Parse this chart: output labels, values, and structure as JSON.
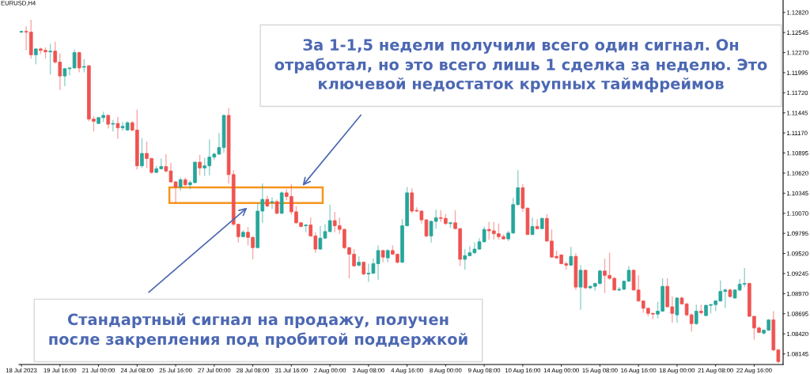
{
  "chart_data": {
    "type": "candlestick",
    "title": "EURUSD,H4",
    "categories": [
      "18 Jul 2023",
      null,
      null,
      null,
      null,
      null,
      null,
      null,
      "19 Jul 16:00",
      null,
      null,
      null,
      null,
      null,
      null,
      null,
      "21 Jul 00:00",
      null,
      null,
      null,
      null,
      null,
      null,
      null,
      "24 Jul 08:00",
      null,
      null,
      null,
      null,
      null,
      null,
      null,
      "25 Jul 16:00",
      null,
      null,
      null,
      null,
      null,
      null,
      null,
      "27 Jul 00:00",
      null,
      null,
      null,
      null,
      null,
      null,
      null,
      "28 Jul 08:00",
      null,
      null,
      null,
      null,
      null,
      null,
      null,
      "31 Jul 16:00",
      null,
      null,
      null,
      null,
      null,
      null,
      null,
      "2 Aug 00:00",
      null,
      null,
      null,
      null,
      null,
      null,
      null,
      "3 Aug 08:00",
      null,
      null,
      null,
      null,
      null,
      null,
      null,
      "4 Aug 16:00",
      null,
      null,
      null,
      null,
      null,
      null,
      null,
      "8 Aug 00:00",
      null,
      null,
      null,
      null,
      null,
      null,
      null,
      "9 Aug 08:00",
      null,
      null,
      null,
      null,
      null,
      null,
      null,
      "10 Aug 16:00",
      null,
      null,
      null,
      null,
      null,
      null,
      null,
      "14 Aug 00:00",
      null,
      null,
      null,
      null,
      null,
      null,
      null,
      "15 Aug 08:00",
      null,
      null,
      null,
      null,
      null,
      null,
      null,
      "16 Aug 16:00",
      null,
      null,
      null,
      null,
      null,
      null,
      null,
      "18 Aug 00:00",
      null,
      null,
      null,
      null,
      null,
      null,
      null,
      "21 Aug 08:00",
      null,
      null,
      null,
      null,
      null,
      null,
      null,
      "22 Aug 16:00",
      null,
      null,
      null,
      null,
      null
    ],
    "ohlc": [
      [
        1.1255,
        1.1257,
        1.1254,
        1.1256
      ],
      [
        1.1256,
        1.1263,
        1.123,
        1.1255
      ],
      [
        1.1255,
        1.1272,
        1.1219,
        1.1224
      ],
      [
        1.1224,
        1.1233,
        1.1211,
        1.1232
      ],
      [
        1.1232,
        1.1234,
        1.1225,
        1.123
      ],
      [
        1.123,
        1.1234,
        1.1219,
        1.1228
      ],
      [
        1.1228,
        1.1239,
        1.1197,
        1.1229
      ],
      [
        1.1229,
        1.1242,
        1.1212,
        1.1214
      ],
      [
        1.1214,
        1.1226,
        1.1176,
        1.1195
      ],
      [
        1.1195,
        1.1206,
        1.1181,
        1.1205
      ],
      [
        1.1205,
        1.1207,
        1.1196,
        1.1206
      ],
      [
        1.1206,
        1.1231,
        1.1205,
        1.1227
      ],
      [
        1.1227,
        1.1228,
        1.12,
        1.1206
      ],
      [
        1.1207,
        1.1218,
        1.12,
        1.1208
      ],
      [
        1.1209,
        1.121,
        1.1133,
        1.1136
      ],
      [
        1.1136,
        1.114,
        1.1119,
        1.1133
      ],
      [
        1.113,
        1.1139,
        1.1129,
        1.1138
      ],
      [
        1.1138,
        1.1146,
        1.1132,
        1.1141
      ],
      [
        1.1141,
        1.1142,
        1.1123,
        1.1129
      ],
      [
        1.1129,
        1.1135,
        1.1119,
        1.113
      ],
      [
        1.113,
        1.1139,
        1.1109,
        1.1124
      ],
      [
        1.1124,
        1.1132,
        1.112,
        1.1126
      ],
      [
        1.1121,
        1.1133,
        1.112,
        1.1131
      ],
      [
        1.1131,
        1.1133,
        1.1119,
        1.1121
      ],
      [
        1.1121,
        1.1149,
        1.1067,
        1.1072
      ],
      [
        1.1072,
        1.111,
        1.1069,
        1.1089
      ],
      [
        1.1089,
        1.1105,
        1.1069,
        1.1082
      ],
      [
        1.1082,
        1.1083,
        1.1061,
        1.1063
      ],
      [
        1.1063,
        1.1072,
        1.1062,
        1.1068
      ],
      [
        1.1068,
        1.1082,
        1.1067,
        1.1071
      ],
      [
        1.1071,
        1.1088,
        1.1063,
        1.1065
      ],
      [
        1.1065,
        1.1076,
        1.1049,
        1.105
      ],
      [
        1.105,
        1.1051,
        1.1021,
        1.1043
      ],
      [
        1.1043,
        1.1056,
        1.1038,
        1.1053
      ],
      [
        1.1053,
        1.1056,
        1.1045,
        1.1046
      ],
      [
        1.1046,
        1.1052,
        1.104,
        1.1049
      ],
      [
        1.1049,
        1.1078,
        1.1048,
        1.1077
      ],
      [
        1.1077,
        1.1087,
        1.1059,
        1.1069
      ],
      [
        1.1069,
        1.1083,
        1.1058,
        1.1072
      ],
      [
        1.1072,
        1.1108,
        1.1059,
        1.1084
      ],
      [
        1.1084,
        1.109,
        1.108,
        1.1088
      ],
      [
        1.1088,
        1.1117,
        1.1087,
        1.1097
      ],
      [
        1.1097,
        1.1142,
        1.109,
        1.1141
      ],
      [
        1.1141,
        1.1151,
        1.1048,
        1.106
      ],
      [
        1.106,
        1.1066,
        1.099,
        1.0992
      ],
      [
        1.0992,
        1.0992,
        1.0967,
        1.0975
      ],
      [
        1.0975,
        1.0984,
        1.0974,
        1.0981
      ],
      [
        1.0981,
        1.0988,
        1.0963,
        1.0974
      ],
      [
        1.0974,
        1.0976,
        1.0944,
        1.096
      ],
      [
        1.096,
        1.1021,
        1.0959,
        1.101
      ],
      [
        1.101,
        1.1048,
        1.0994,
        1.1026
      ],
      [
        1.1026,
        1.1031,
        1.1015,
        1.1017
      ],
      [
        1.1022,
        1.1029,
        1.1013,
        1.1023
      ],
      [
        1.1023,
        1.1026,
        1.1006,
        1.1007
      ],
      [
        1.1007,
        1.1037,
        1.1006,
        1.1035
      ],
      [
        1.1035,
        1.104,
        1.1025,
        1.103
      ],
      [
        1.103,
        1.1047,
        1.1005,
        1.1009
      ],
      [
        1.1009,
        1.1017,
        1.0993,
        1.0994
      ],
      [
        1.0994,
        1.0995,
        1.0988,
        1.0989
      ],
      [
        1.099,
        1.0992,
        1.0981,
        1.0991
      ],
      [
        1.0991,
        1.1001,
        1.0975,
        1.0976
      ],
      [
        1.0976,
        1.0981,
        1.0953,
        1.0958
      ],
      [
        1.0958,
        1.099,
        1.0957,
        1.0973
      ],
      [
        1.0973,
        1.0992,
        1.0972,
        1.0982
      ],
      [
        1.0982,
        1.1019,
        1.0981,
        1.0997
      ],
      [
        1.0997,
        1.1009,
        1.0981,
        1.099
      ],
      [
        1.099,
        1.1001,
        1.0979,
        1.0985
      ],
      [
        1.0985,
        1.0986,
        1.0958,
        1.096
      ],
      [
        1.096,
        1.0961,
        1.0918,
        1.0951
      ],
      [
        1.0951,
        1.0958,
        1.0934,
        1.0935
      ],
      [
        1.0936,
        1.0948,
        1.0934,
        1.094
      ],
      [
        1.094,
        1.0941,
        1.0922,
        1.0924
      ],
      [
        1.0924,
        1.0938,
        1.0913,
        1.0925
      ],
      [
        1.0925,
        1.0945,
        1.0924,
        1.0938
      ],
      [
        1.0938,
        1.0963,
        1.0916,
        1.0956
      ],
      [
        1.0956,
        1.0957,
        1.094,
        1.0947
      ],
      [
        1.0946,
        1.0958,
        1.094,
        1.0956
      ],
      [
        1.0956,
        1.0963,
        1.095,
        1.0951
      ],
      [
        1.0951,
        1.0952,
        1.0938,
        1.094
      ],
      [
        1.094,
        1.0999,
        1.0939,
        1.099
      ],
      [
        1.099,
        1.1043,
        1.0989,
        1.1035
      ],
      [
        1.1035,
        1.1041,
        1.1007,
        1.101
      ],
      [
        1.1011,
        1.1015,
        1.1009,
        1.101
      ],
      [
        1.101,
        1.1011,
        1.0993,
        1.0998
      ],
      [
        1.0998,
        1.0999,
        1.0974,
        1.0976
      ],
      [
        1.0976,
        1.0997,
        1.0967,
        1.0996
      ],
      [
        1.0996,
        1.1012,
        1.0986,
        1.1001
      ],
      [
        1.1001,
        1.1011,
        1.0995,
        1.1
      ],
      [
        1.1,
        1.1006,
        1.0991,
        1.0993
      ],
      [
        1.0993,
        1.0995,
        1.0987,
        1.0994
      ],
      [
        1.0994,
        1.1011,
        1.0985,
        1.0986
      ],
      [
        1.0986,
        1.0987,
        1.0935,
        1.0944
      ],
      [
        1.0944,
        1.0958,
        1.093,
        1.0949
      ],
      [
        1.0949,
        1.0962,
        1.0948,
        1.0953
      ],
      [
        1.0953,
        1.0967,
        1.0951,
        1.0958
      ],
      [
        1.0958,
        1.0973,
        1.0957,
        1.0968
      ],
      [
        1.0968,
        1.0989,
        1.0967,
        1.0985
      ],
      [
        1.0985,
        1.0995,
        1.0971,
        1.0983
      ],
      [
        1.0983,
        1.0995,
        1.0971,
        1.0979
      ],
      [
        1.0979,
        1.0993,
        1.0971,
        1.0975
      ],
      [
        1.0975,
        1.0978,
        1.0971,
        1.0972
      ],
      [
        1.0972,
        1.0983,
        1.0969,
        1.098
      ],
      [
        1.098,
        1.1028,
        1.0979,
        1.1019
      ],
      [
        1.1019,
        1.1066,
        1.1017,
        1.1042
      ],
      [
        1.1042,
        1.1047,
        1.1009,
        1.1014
      ],
      [
        1.1014,
        1.1015,
        1.0977,
        1.0978
      ],
      [
        1.0978,
        1.1001,
        1.0977,
        1.0989
      ],
      [
        1.0989,
        1.0999,
        1.0985,
        1.0986
      ],
      [
        1.0986,
        1.1001,
        1.0985,
        1.1
      ],
      [
        1.1,
        1.1006,
        1.0968,
        1.0969
      ],
      [
        1.0969,
        1.0985,
        1.0946,
        1.0947
      ],
      [
        1.0948,
        1.0956,
        1.0945,
        1.0946
      ],
      [
        1.095,
        1.0951,
        1.0937,
        1.0938
      ],
      [
        1.0938,
        1.0941,
        1.093,
        1.0936
      ],
      [
        1.0936,
        1.0961,
        1.0935,
        1.0948
      ],
      [
        1.0948,
        1.0952,
        1.0902,
        1.0906
      ],
      [
        1.0906,
        1.0936,
        1.0875,
        1.0929
      ],
      [
        1.0929,
        1.093,
        1.0903,
        1.0905
      ],
      [
        1.0905,
        1.0908,
        1.0903,
        1.0907
      ],
      [
        1.0907,
        1.0912,
        1.0901,
        1.0911
      ],
      [
        1.0911,
        1.093,
        1.0909,
        1.0928
      ],
      [
        1.0928,
        1.0945,
        1.0898,
        1.0922
      ],
      [
        1.0922,
        1.0953,
        1.0916,
        1.0918
      ],
      [
        1.0918,
        1.092,
        1.0901,
        1.0902
      ],
      [
        1.0902,
        1.0906,
        1.09,
        1.0903
      ],
      [
        1.0903,
        1.0915,
        1.0902,
        1.0914
      ],
      [
        1.0914,
        1.0935,
        1.0913,
        1.0929
      ],
      [
        1.0929,
        1.093,
        1.0901,
        1.0902
      ],
      [
        1.0902,
        1.0922,
        1.0886,
        1.0887
      ],
      [
        1.0887,
        1.0888,
        1.0871,
        1.0877
      ],
      [
        1.0877,
        1.0878,
        1.0866,
        1.087
      ],
      [
        1.087,
        1.0871,
        1.0862,
        1.0869
      ],
      [
        1.0869,
        1.0886,
        1.0863,
        1.0873
      ],
      [
        1.0873,
        1.0918,
        1.0872,
        1.0907
      ],
      [
        1.0907,
        1.0918,
        1.0878,
        1.0879
      ],
      [
        1.0879,
        1.0893,
        1.0857,
        1.087
      ],
      [
        1.0868,
        1.0892,
        1.0857,
        1.0891
      ],
      [
        1.0891,
        1.0893,
        1.0882,
        1.0883
      ],
      [
        1.0883,
        1.0884,
        1.0866,
        1.0868
      ],
      [
        1.0868,
        1.087,
        1.0845,
        1.0856
      ],
      [
        1.0856,
        1.0882,
        1.0854,
        1.0873
      ],
      [
        1.0873,
        1.0882,
        1.0868,
        1.0871
      ],
      [
        1.0867,
        1.0882,
        1.0866,
        1.0881
      ],
      [
        1.0881,
        1.0883,
        1.087,
        1.0882
      ],
      [
        1.0882,
        1.0888,
        1.0873,
        1.0887
      ],
      [
        1.0887,
        1.0915,
        1.0886,
        1.09
      ],
      [
        1.09,
        1.0904,
        1.0877,
        1.0902
      ],
      [
        1.0902,
        1.0904,
        1.0892,
        1.0893
      ],
      [
        1.0891,
        1.0903,
        1.089,
        1.0902
      ],
      [
        1.0902,
        1.0917,
        1.09,
        1.091
      ],
      [
        1.091,
        1.0932,
        1.0906,
        1.0911
      ],
      [
        1.0911,
        1.0912,
        1.0865,
        1.0866
      ],
      [
        1.0866,
        1.0866,
        1.0834,
        1.085
      ],
      [
        1.085,
        1.0852,
        1.0843,
        1.0844
      ],
      [
        1.0843,
        1.0848,
        1.0841,
        1.0847
      ],
      [
        1.0847,
        1.0862,
        1.0846,
        1.0861
      ],
      [
        1.0861,
        1.0873,
        1.0818,
        1.082
      ],
      [
        1.082,
        1.0821,
        1.0802,
        1.0804
      ]
    ],
    "colors": [
      "#26a69a",
      "#ef5350",
      "#ef5350",
      "#26a69a",
      "#ef5350",
      "#ef5350",
      "#26a69a",
      "#ef5350",
      "#ef5350",
      "#26a69a",
      "#26a69a",
      "#26a69a",
      "#ef5350",
      "#26a69a",
      "#ef5350",
      "#ef5350",
      "#26a69a",
      "#26a69a",
      "#ef5350",
      "#26a69a",
      "#ef5350",
      "#26a69a",
      "#26a69a",
      "#ef5350",
      "#ef5350",
      "#26a69a",
      "#ef5350",
      "#ef5350",
      "#26a69a",
      "#26a69a",
      "#ef5350",
      "#ef5350",
      "#ef5350",
      "#26a69a",
      "#ef5350",
      "#26a69a",
      "#26a69a",
      "#ef5350",
      "#26a69a",
      "#26a69a",
      "#26a69a",
      "#26a69a",
      "#26a69a",
      "#ef5350",
      "#ef5350",
      "#ef5350",
      "#26a69a",
      "#ef5350",
      "#ef5350",
      "#26a69a",
      "#26a69a",
      "#ef5350",
      "#26a69a",
      "#ef5350",
      "#26a69a",
      "#ef5350",
      "#ef5350",
      "#ef5350",
      "#ef5350",
      "#26a69a",
      "#ef5350",
      "#ef5350",
      "#26a69a",
      "#26a69a",
      "#26a69a",
      "#ef5350",
      "#ef5350",
      "#ef5350",
      "#ef5350",
      "#ef5350",
      "#26a69a",
      "#ef5350",
      "#26a69a",
      "#26a69a",
      "#26a69a",
      "#ef5350",
      "#26a69a",
      "#ef5350",
      "#ef5350",
      "#26a69a",
      "#26a69a",
      "#ef5350",
      "#ef5350",
      "#ef5350",
      "#ef5350",
      "#26a69a",
      "#26a69a",
      "#ef5350",
      "#ef5350",
      "#26a69a",
      "#ef5350",
      "#ef5350",
      "#26a69a",
      "#26a69a",
      "#26a69a",
      "#26a69a",
      "#26a69a",
      "#ef5350",
      "#ef5350",
      "#ef5350",
      "#ef5350",
      "#26a69a",
      "#26a69a",
      "#26a69a",
      "#ef5350",
      "#ef5350",
      "#26a69a",
      "#ef5350",
      "#26a69a",
      "#ef5350",
      "#ef5350",
      "#ef5350",
      "#ef5350",
      "#ef5350",
      "#26a69a",
      "#ef5350",
      "#26a69a",
      "#ef5350",
      "#26a69a",
      "#26a69a",
      "#26a69a",
      "#ef5350",
      "#ef5350",
      "#ef5350",
      "#26a69a",
      "#26a69a",
      "#26a69a",
      "#ef5350",
      "#ef5350",
      "#ef5350",
      "#ef5350",
      "#ef5350",
      "#26a69a",
      "#26a69a",
      "#ef5350",
      "#ef5350",
      "#26a69a",
      "#ef5350",
      "#ef5350",
      "#ef5350",
      "#26a69a",
      "#ef5350",
      "#26a69a",
      "#26a69a",
      "#26a69a",
      "#26a69a",
      "#26a69a",
      "#ef5350",
      "#26a69a",
      "#26a69a",
      "#26a69a",
      "#ef5350",
      "#ef5350",
      "#ef5350",
      "#26a69a",
      "#26a69a",
      "#ef5350",
      "#ef5350"
    ],
    "ylim": [
      1.08,
      1.1299
    ],
    "yticks": [
      {
        "value": 1.1282,
        "label": "1.12820"
      },
      {
        "value": 1.12545,
        "label": "1.12545"
      },
      {
        "value": 1.1227,
        "label": "1.12270"
      },
      {
        "value": 1.11995,
        "label": "1.11995"
      },
      {
        "value": 1.1172,
        "label": "1.11720"
      },
      {
        "value": 1.11445,
        "label": "1.11445"
      },
      {
        "value": 1.1117,
        "label": "1.11170"
      },
      {
        "value": 1.10895,
        "label": "1.10895"
      },
      {
        "value": 1.1062,
        "label": "1.10620"
      },
      {
        "value": 1.10345,
        "label": "1.10345"
      },
      {
        "value": 1.1007,
        "label": "1.10070"
      },
      {
        "value": 1.09795,
        "label": "1.09795"
      },
      {
        "value": 1.0952,
        "label": "1.09520"
      },
      {
        "value": 1.09245,
        "label": "1.09245"
      },
      {
        "value": 1.0897,
        "label": "1.08970"
      },
      {
        "value": 1.08695,
        "label": "1.08695"
      },
      {
        "value": 1.0842,
        "label": "1.08420"
      },
      {
        "value": 1.08145,
        "label": "1.08145"
      }
    ],
    "annotations": [
      "За 1-1,5 недели получили всего один сигнал. Он\nотработал, но это всего лишь 1 сделка за неделю. Это\nключевой недостаток крупных таймфреймов",
      "Стандартный сигнал на продажу, получен\nпосле закрепления под пробитой поддержкой"
    ]
  }
}
